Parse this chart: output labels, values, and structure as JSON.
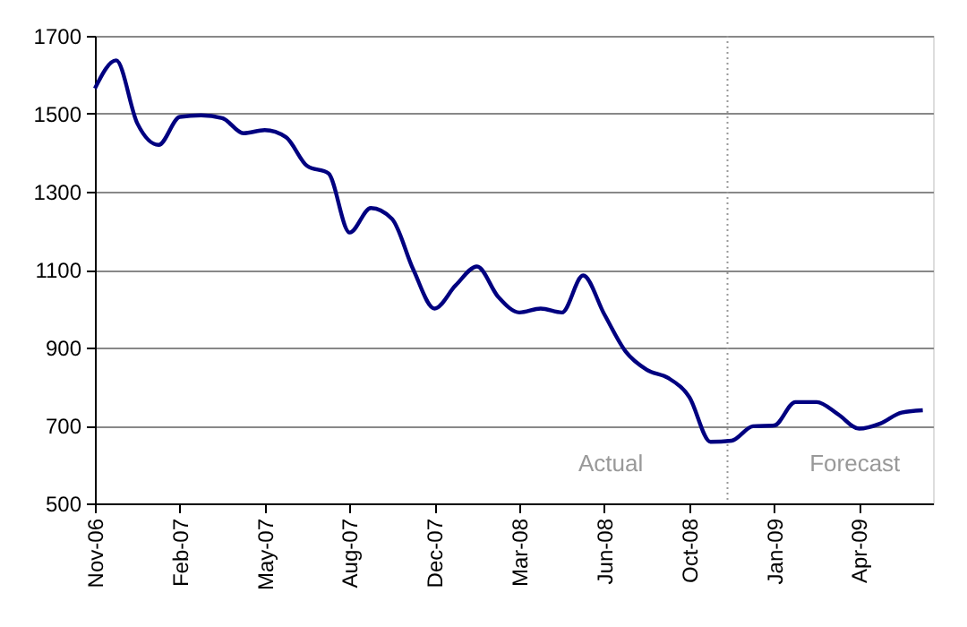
{
  "chart_data": {
    "type": "line",
    "categories": [
      "Nov-06",
      null,
      null,
      null,
      "Feb-07",
      null,
      null,
      null,
      "May-07",
      null,
      null,
      null,
      "Aug-07",
      null,
      null,
      null,
      "Dec-07",
      null,
      null,
      null,
      "Mar-08",
      null,
      null,
      null,
      "Jun-08",
      null,
      null,
      null,
      "Oct-08",
      null,
      null,
      null,
      "Jan-09",
      null,
      null,
      null,
      "Apr-09",
      null,
      null,
      null
    ],
    "series": [
      {
        "color": "#000080",
        "values": [
          1565,
          1637,
          1475,
          1420,
          1492,
          1496,
          1489,
          1450,
          1458,
          1440,
          1366,
          1347,
          1195,
          1258,
          1230,
          1100,
          1000,
          1060,
          1108,
          1030,
          990,
          1000,
          990,
          1085,
          985,
          890,
          843,
          822,
          773,
          658,
          661,
          698,
          700,
          760,
          760,
          729,
          692,
          705,
          733,
          739
        ]
      }
    ],
    "ylim": [
      500,
      1700
    ],
    "yticks": [
      500,
      700,
      900,
      1100,
      1300,
      1500,
      1700
    ],
    "grid": "y",
    "legend": false,
    "marker": "none",
    "line_style": "solid",
    "annotations": [
      "Actual",
      "Forecast"
    ]
  }
}
